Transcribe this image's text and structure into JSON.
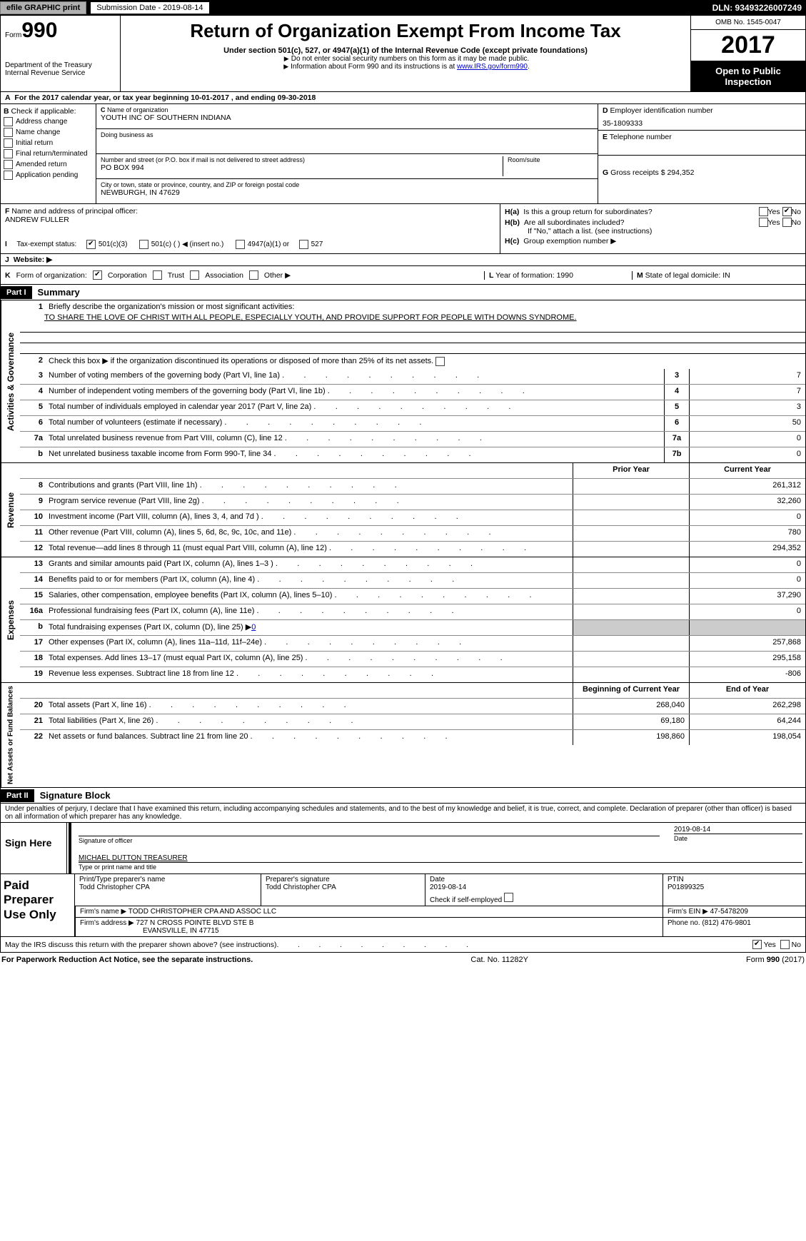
{
  "topbar": {
    "efile": "efile GRAPHIC print",
    "sub_label": "Submission Date - 2019-08-14",
    "dln": "DLN: 93493226007249"
  },
  "header": {
    "form_prefix": "Form",
    "form_num": "990",
    "dept": "Department of the Treasury",
    "irs": "Internal Revenue Service",
    "title": "Return of Organization Exempt From Income Tax",
    "sub1": "Under section 501(c), 527, or 4947(a)(1) of the Internal Revenue Code (except private foundations)",
    "sub2": "Do not enter social security numbers on this form as it may be made public.",
    "sub3_a": "Information about Form 990 and its instructions is at ",
    "sub3_link": "www.IRS.gov/form990",
    "omb": "OMB No. 1545-0047",
    "year": "2017",
    "open_public": "Open to Public Inspection"
  },
  "lineA": "For the 2017 calendar year, or tax year beginning 10-01-2017      , and ending 09-30-2018",
  "boxB": {
    "heading": "Check if applicable:",
    "items": [
      "Address change",
      "Name change",
      "Initial return",
      "Final return/terminated",
      "Amended return",
      "Application pending"
    ]
  },
  "boxC": {
    "name_label": "Name of organization",
    "name": "YOUTH INC OF SOUTHERN INDIANA",
    "dba_label": "Doing business as",
    "street_label": "Number and street (or P.O. box if mail is not delivered to street address)",
    "room_label": "Room/suite",
    "street": "PO BOX 994",
    "city_label": "City or town, state or province, country, and ZIP or foreign postal code",
    "city": "NEWBURGH, IN  47629"
  },
  "boxD": {
    "label": "Employer identification number",
    "value": "35-1809333"
  },
  "boxE": {
    "label": "Telephone number",
    "value": ""
  },
  "boxG": {
    "label": "Gross receipts $",
    "value": "294,352"
  },
  "boxF": {
    "label": "Name and address of principal officer:",
    "name": "ANDREW FULLER"
  },
  "boxH": {
    "a": "Is this a group return for subordinates?",
    "b": "Are all subordinates included?",
    "b_note": "If \"No,\" attach a list. (see instructions)",
    "c": "Group exemption number ▶",
    "yes": "Yes",
    "no": "No"
  },
  "taxExempt": {
    "label": "Tax-exempt status:",
    "o501c3": "501(c)(3)",
    "o501c": "501(c) (  ) ◀ (insert no.)",
    "o4947": "4947(a)(1) or",
    "o527": "527"
  },
  "rowJ": "Website: ▶",
  "rowK": {
    "label": "Form of organization:",
    "corp": "Corporation",
    "trust": "Trust",
    "assoc": "Association",
    "other": "Other ▶",
    "year_label": "Year of formation: 1990",
    "state_label": "State of legal domicile: IN"
  },
  "part1": {
    "hdr": "Part I",
    "title": "Summary"
  },
  "activities": {
    "label": "Activities & Governance",
    "l1a": "Briefly describe the organization's mission or most significant activities:",
    "l1b": "TO SHARE THE LOVE OF CHRIST WITH ALL PEOPLE, ESPECIALLY YOUTH, AND PROVIDE SUPPORT FOR PEOPLE WITH DOWNS SYNDROME.",
    "l2": "Check this box ▶      if the organization discontinued its operations or disposed of more than 25% of its net assets.",
    "rows": [
      {
        "n": "3",
        "d": "Number of voting members of the governing body (Part VI, line 1a)",
        "box": "3",
        "v": "7"
      },
      {
        "n": "4",
        "d": "Number of independent voting members of the governing body (Part VI, line 1b)",
        "box": "4",
        "v": "7"
      },
      {
        "n": "5",
        "d": "Total number of individuals employed in calendar year 2017 (Part V, line 2a)",
        "box": "5",
        "v": "3"
      },
      {
        "n": "6",
        "d": "Total number of volunteers (estimate if necessary)",
        "box": "6",
        "v": "50"
      },
      {
        "n": "7a",
        "d": "Total unrelated business revenue from Part VIII, column (C), line 12",
        "box": "7a",
        "v": "0"
      },
      {
        "n": "b",
        "d": "Net unrelated business taxable income from Form 990-T, line 34",
        "box": "7b",
        "v": "0"
      }
    ]
  },
  "revExpHdr": {
    "prior": "Prior Year",
    "current": "Current Year",
    "boy": "Beginning of Current Year",
    "eoy": "End of Year"
  },
  "revenue": {
    "label": "Revenue",
    "rows": [
      {
        "n": "8",
        "d": "Contributions and grants (Part VIII, line 1h)",
        "p": "",
        "c": "261,312"
      },
      {
        "n": "9",
        "d": "Program service revenue (Part VIII, line 2g)",
        "p": "",
        "c": "32,260"
      },
      {
        "n": "10",
        "d": "Investment income (Part VIII, column (A), lines 3, 4, and 7d )",
        "p": "",
        "c": "0"
      },
      {
        "n": "11",
        "d": "Other revenue (Part VIII, column (A), lines 5, 6d, 8c, 9c, 10c, and 11e)",
        "p": "",
        "c": "780"
      },
      {
        "n": "12",
        "d": "Total revenue—add lines 8 through 11 (must equal Part VIII, column (A), line 12)",
        "p": "",
        "c": "294,352"
      }
    ]
  },
  "expenses": {
    "label": "Expenses",
    "rows": [
      {
        "n": "13",
        "d": "Grants and similar amounts paid (Part IX, column (A), lines 1–3 )",
        "p": "",
        "c": "0"
      },
      {
        "n": "14",
        "d": "Benefits paid to or for members (Part IX, column (A), line 4)",
        "p": "",
        "c": "0"
      },
      {
        "n": "15",
        "d": "Salaries, other compensation, employee benefits (Part IX, column (A), lines 5–10)",
        "p": "",
        "c": "37,290"
      },
      {
        "n": "16a",
        "d": "Professional fundraising fees (Part IX, column (A), line 11e)",
        "p": "",
        "c": "0"
      },
      {
        "n": "b",
        "d": "Total fundraising expenses (Part IX, column (D), line 25) ▶",
        "link": "0",
        "nobox": true
      },
      {
        "n": "17",
        "d": "Other expenses (Part IX, column (A), lines 11a–11d, 11f–24e)",
        "p": "",
        "c": "257,868"
      },
      {
        "n": "18",
        "d": "Total expenses. Add lines 13–17 (must equal Part IX, column (A), line 25)",
        "p": "",
        "c": "295,158"
      },
      {
        "n": "19",
        "d": "Revenue less expenses. Subtract line 18 from line 12",
        "p": "",
        "c": "-806"
      }
    ]
  },
  "netassets": {
    "label": "Net Assets or Fund Balances",
    "rows": [
      {
        "n": "20",
        "d": "Total assets (Part X, line 16)",
        "p": "268,040",
        "c": "262,298"
      },
      {
        "n": "21",
        "d": "Total liabilities (Part X, line 26)",
        "p": "69,180",
        "c": "64,244"
      },
      {
        "n": "22",
        "d": "Net assets or fund balances. Subtract line 21 from line 20",
        "p": "198,860",
        "c": "198,054"
      }
    ]
  },
  "part2": {
    "hdr": "Part II",
    "title": "Signature Block"
  },
  "penalties": "Under penalties of perjury, I declare that I have examined this return, including accompanying schedules and statements, and to the best of my knowledge and belief, it is true, correct, and complete. Declaration of preparer (other than officer) is based on all information of which preparer has any knowledge.",
  "sign": {
    "here": "Sign Here",
    "sig_officer": "Signature of officer",
    "date": "Date",
    "date_val": "2019-08-14",
    "name": "MICHAEL DUTTON  TREASURER",
    "name_label": "Type or print name and title"
  },
  "preparer": {
    "label": "Paid Preparer Use Only",
    "print_label": "Print/Type preparer's name",
    "print": "Todd Christopher CPA",
    "sig_label": "Preparer's signature",
    "sig": "Todd Christopher CPA",
    "date_label": "Date",
    "date": "2019-08-14",
    "check_label": "Check        if self-employed",
    "ptin_label": "PTIN",
    "ptin": "P01899325",
    "firm_name_label": "Firm's name     ▶",
    "firm_name": "TODD CHRISTOPHER CPA AND ASSOC LLC",
    "firm_ein_label": "Firm's EIN ▶",
    "firm_ein": "47-5478209",
    "firm_addr_label": "Firm's address ▶",
    "firm_addr1": "727 N CROSS POINTE BLVD STE B",
    "firm_addr2": "EVANSVILLE, IN  47715",
    "phone_label": "Phone no.",
    "phone": "(812) 476-9801"
  },
  "discuss": {
    "q": "May the IRS discuss this return with the preparer shown above? (see instructions)",
    "yes": "Yes",
    "no": "No"
  },
  "footer": {
    "left": "For Paperwork Reduction Act Notice, see the separate instructions.",
    "mid": "Cat. No. 11282Y",
    "right": "Form 990 (2017)"
  }
}
